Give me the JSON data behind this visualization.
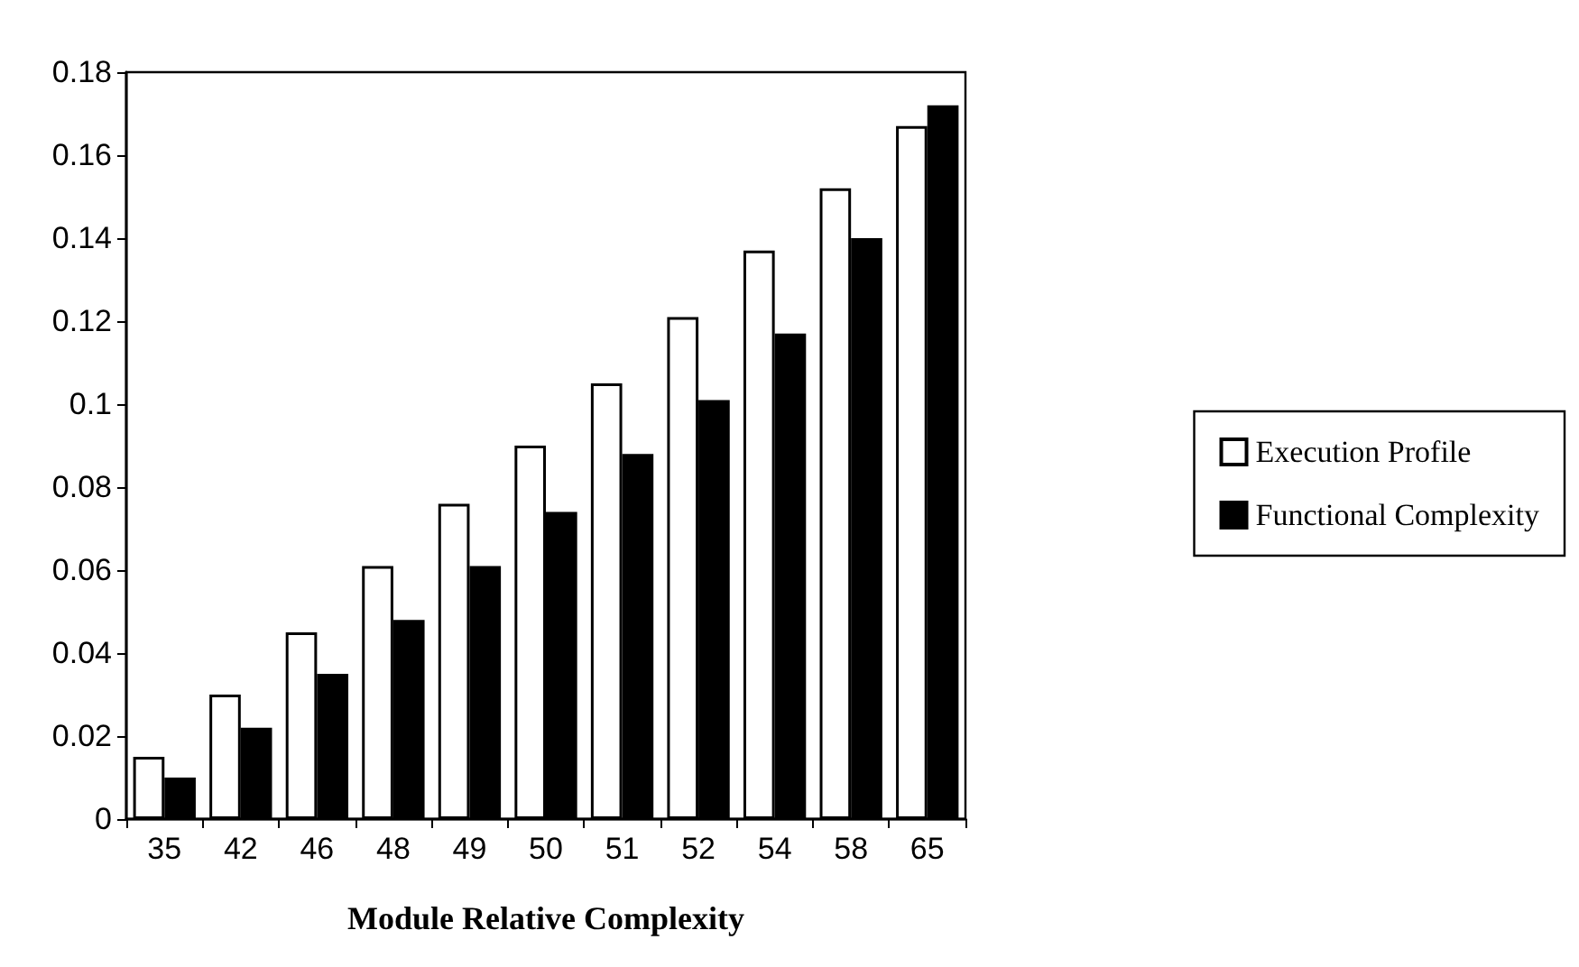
{
  "chart_data": {
    "type": "bar",
    "xlabel": "Module Relative Complexity",
    "categories": [
      "35",
      "42",
      "46",
      "48",
      "49",
      "50",
      "51",
      "52",
      "54",
      "58",
      "65"
    ],
    "series": [
      {
        "name": "Execution Profile",
        "color": "#ffffff",
        "values": [
          0.015,
          0.03,
          0.045,
          0.061,
          0.076,
          0.09,
          0.105,
          0.121,
          0.137,
          0.152,
          0.167
        ]
      },
      {
        "name": "Functional Complexity",
        "color": "#000000",
        "values": [
          0.01,
          0.022,
          0.035,
          0.048,
          0.061,
          0.074,
          0.088,
          0.101,
          0.117,
          0.14,
          0.172
        ]
      }
    ],
    "ylim": [
      0,
      0.18
    ],
    "yticks": [
      0,
      0.02,
      0.04,
      0.06,
      0.08,
      0.1,
      0.12,
      0.14,
      0.16,
      0.18
    ],
    "grid": false,
    "legend": "right"
  }
}
